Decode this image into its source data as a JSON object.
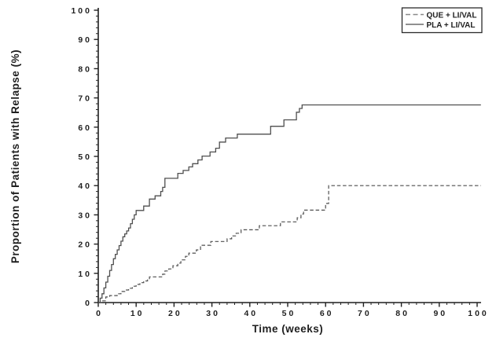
{
  "chart_data": {
    "type": "line",
    "subtype": "kaplan-meier-step",
    "title": "",
    "xlabel": "Time (weeks)",
    "ylabel": "Proportion of Patients with Relapse (%)",
    "xlim": [
      0,
      100
    ],
    "ylim": [
      0,
      100
    ],
    "x_major_ticks": [
      0,
      10,
      20,
      30,
      40,
      50,
      60,
      70,
      80,
      90,
      100
    ],
    "y_major_ticks": [
      0,
      10,
      20,
      30,
      40,
      50,
      60,
      70,
      80,
      90,
      100
    ],
    "x_minor_step": 2,
    "y_minor_step": 2,
    "grid": false,
    "legend_position": "top-right",
    "legend": [
      {
        "label": "QUE + LI/VAL",
        "line_style": "dashed"
      },
      {
        "label": "PLA + LI/VAL",
        "line_style": "solid"
      }
    ],
    "series": [
      {
        "name": "QUE + LI/VAL",
        "line_style": "dashed",
        "points": [
          [
            0,
            0
          ],
          [
            1,
            0.6
          ],
          [
            2,
            1.9
          ],
          [
            3,
            2.4
          ],
          [
            5,
            3
          ],
          [
            6,
            3.8
          ],
          [
            7,
            4.3
          ],
          [
            8,
            4.9
          ],
          [
            9,
            5.6
          ],
          [
            10,
            6.2
          ],
          [
            11,
            6.8
          ],
          [
            12,
            7.4
          ],
          [
            13,
            8
          ],
          [
            13.5,
            8.8
          ],
          [
            17,
            9.7
          ],
          [
            17.6,
            10.8
          ],
          [
            18.6,
            11.5
          ],
          [
            19.7,
            12.6
          ],
          [
            21,
            13.5
          ],
          [
            21.8,
            14.6
          ],
          [
            23,
            15.8
          ],
          [
            23.9,
            16.9
          ],
          [
            25.9,
            18
          ],
          [
            27,
            19.6
          ],
          [
            29.7,
            20.9
          ],
          [
            34,
            21.8
          ],
          [
            35.2,
            22.8
          ],
          [
            36.4,
            23.7
          ],
          [
            37.7,
            24.9
          ],
          [
            42.5,
            26.3
          ],
          [
            48.1,
            27.6
          ],
          [
            52.5,
            29
          ],
          [
            53.5,
            30.3
          ],
          [
            54.2,
            31.6
          ],
          [
            60,
            33.9
          ],
          [
            60.8,
            40
          ],
          [
            101,
            40
          ]
        ]
      },
      {
        "name": "PLA + LI/VAL",
        "line_style": "solid",
        "points": [
          [
            0,
            0
          ],
          [
            0.5,
            1.5
          ],
          [
            1,
            3
          ],
          [
            1.5,
            5
          ],
          [
            2,
            7
          ],
          [
            2.5,
            9
          ],
          [
            3,
            11
          ],
          [
            3.5,
            13
          ],
          [
            4,
            15
          ],
          [
            4.5,
            16.5
          ],
          [
            5,
            18
          ],
          [
            5.5,
            19.5
          ],
          [
            6,
            21
          ],
          [
            6.5,
            22.5
          ],
          [
            7,
            23.5
          ],
          [
            7.5,
            24.5
          ],
          [
            8,
            25.5
          ],
          [
            8.5,
            27
          ],
          [
            9,
            28.5
          ],
          [
            9.5,
            30
          ],
          [
            10,
            31.5
          ],
          [
            12,
            33
          ],
          [
            13.5,
            35.4
          ],
          [
            15,
            36.5
          ],
          [
            16.5,
            38
          ],
          [
            17,
            39.4
          ],
          [
            17.6,
            42.5
          ],
          [
            21,
            44.2
          ],
          [
            22.4,
            45.2
          ],
          [
            23.9,
            46.4
          ],
          [
            24.9,
            47.5
          ],
          [
            26.3,
            48.8
          ],
          [
            27.4,
            50.1
          ],
          [
            29.5,
            51.5
          ],
          [
            31,
            52.8
          ],
          [
            32,
            54.9
          ],
          [
            33.6,
            56.3
          ],
          [
            36.7,
            57.6
          ],
          [
            45.5,
            60.3
          ],
          [
            49,
            62.5
          ],
          [
            52.3,
            65.1
          ],
          [
            53.1,
            66.4
          ],
          [
            53.8,
            67.6
          ],
          [
            101,
            67.6
          ]
        ]
      }
    ],
    "colors": {
      "background": "#ffffff",
      "axis": "#1f1f1f",
      "text": "#1f1f1f",
      "curve": "#4f4f4f",
      "legend_border": "#2b2b2b",
      "legend_swatch_dashed": "#8a8a8a",
      "legend_swatch_solid": "#6b6b6b"
    }
  }
}
